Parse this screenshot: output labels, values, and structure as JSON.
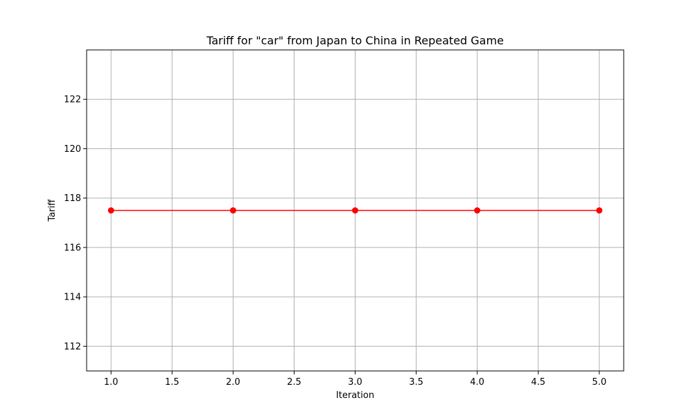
{
  "chart_data": {
    "type": "line",
    "title": "Tariff for \"car\" from Japan to China in Repeated Game",
    "xlabel": "Iteration",
    "ylabel": "Tariff",
    "x": [
      1,
      2,
      3,
      4,
      5
    ],
    "series": [
      {
        "values": [
          117.5,
          117.5,
          117.5,
          117.5,
          117.5
        ],
        "color": "#ff0000",
        "marker": "circle"
      }
    ],
    "xlim": [
      0.8,
      5.2
    ],
    "ylim": [
      111.0,
      124.0
    ],
    "xticks": [
      1.0,
      1.5,
      2.0,
      2.5,
      3.0,
      3.5,
      4.0,
      4.5,
      5.0
    ],
    "xtick_labels": [
      "1.0",
      "1.5",
      "2.0",
      "2.5",
      "3.0",
      "3.5",
      "4.0",
      "4.5",
      "5.0"
    ],
    "yticks": [
      112,
      114,
      116,
      118,
      120,
      122
    ],
    "ytick_labels": [
      "112",
      "114",
      "116",
      "118",
      "120",
      "122"
    ],
    "grid": true,
    "grid_color": "#b0b0b0"
  }
}
